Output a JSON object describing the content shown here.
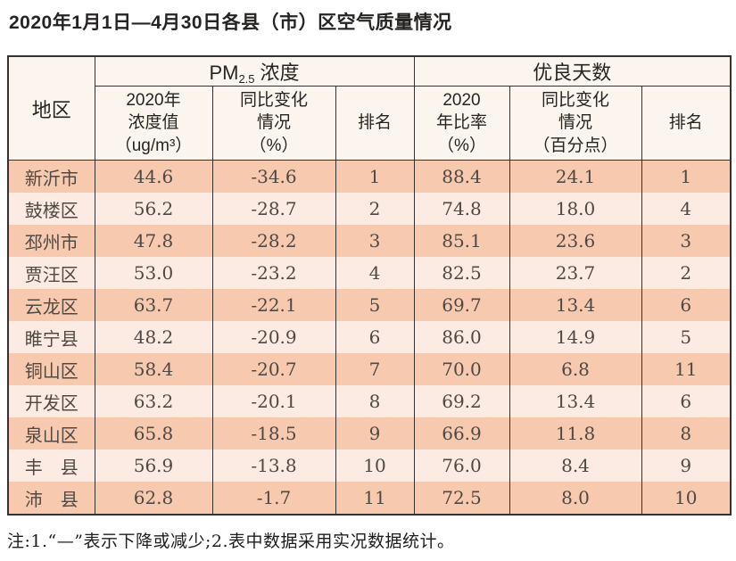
{
  "page": {
    "title": "2020年1月1日—4月30日各县（市）区空气质量情况",
    "note": "注:1.“—”表示下降或减少;2.表中数据采用实况数据统计。"
  },
  "table": {
    "header": {
      "region": "地区",
      "pm_group": {
        "prefix": "PM",
        "sub": "2.5",
        "suffix": "浓度"
      },
      "days_group": "优良天数",
      "pm_value": "2020年\n浓度值\n（ug/m³）",
      "pm_change": "同比变化\n情况\n（%）",
      "pm_rank": "排名",
      "days_ratio": "2020\n年比率\n（%）",
      "days_change": "同比变化\n情况\n（百分点）",
      "days_rank": "排名"
    },
    "rows": [
      {
        "region": "新沂市",
        "pm_value": "44.6",
        "pm_change": "-34.6",
        "pm_rank": "1",
        "days_ratio": "88.4",
        "days_change": "24.1",
        "days_rank": "1"
      },
      {
        "region": "鼓楼区",
        "pm_value": "56.2",
        "pm_change": "-28.7",
        "pm_rank": "2",
        "days_ratio": "74.8",
        "days_change": "18.0",
        "days_rank": "4"
      },
      {
        "region": "邳州市",
        "pm_value": "47.8",
        "pm_change": "-28.2",
        "pm_rank": "3",
        "days_ratio": "85.1",
        "days_change": "23.6",
        "days_rank": "3"
      },
      {
        "region": "贾汪区",
        "pm_value": "53.0",
        "pm_change": "-23.2",
        "pm_rank": "4",
        "days_ratio": "82.5",
        "days_change": "23.7",
        "days_rank": "2"
      },
      {
        "region": "云龙区",
        "pm_value": "63.7",
        "pm_change": "-22.1",
        "pm_rank": "5",
        "days_ratio": "69.7",
        "days_change": "13.4",
        "days_rank": "6"
      },
      {
        "region": "睢宁县",
        "pm_value": "48.2",
        "pm_change": "-20.9",
        "pm_rank": "6",
        "days_ratio": "86.0",
        "days_change": "14.9",
        "days_rank": "5"
      },
      {
        "region": "铜山区",
        "pm_value": "58.4",
        "pm_change": "-20.7",
        "pm_rank": "7",
        "days_ratio": "70.0",
        "days_change": "6.8",
        "days_rank": "11"
      },
      {
        "region": "开发区",
        "pm_value": "63.2",
        "pm_change": "-20.1",
        "pm_rank": "8",
        "days_ratio": "69.2",
        "days_change": "13.4",
        "days_rank": "6"
      },
      {
        "region": "泉山区",
        "pm_value": "65.8",
        "pm_change": "-18.5",
        "pm_rank": "9",
        "days_ratio": "66.9",
        "days_change": "11.8",
        "days_rank": "8"
      },
      {
        "region": "丰　县",
        "pm_value": "56.9",
        "pm_change": "-13.8",
        "pm_rank": "10",
        "days_ratio": "76.0",
        "days_change": "8.4",
        "days_rank": "9"
      },
      {
        "region": "沛　县",
        "pm_value": "62.8",
        "pm_change": "-1.7",
        "pm_rank": "11",
        "days_ratio": "72.5",
        "days_change": "8.0",
        "days_rank": "10"
      }
    ],
    "colors": {
      "row_odd_bg": "#f7cab0",
      "row_even_bg": "#fcebe2",
      "header_bg": "#fbf5ed",
      "border": "#343130",
      "text": "#4f4843"
    }
  }
}
